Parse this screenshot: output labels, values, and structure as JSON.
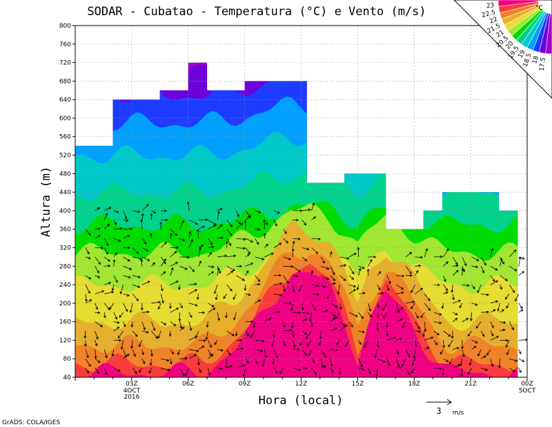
{
  "chart_data": {
    "type": "heatmap",
    "title": "SODAR - Cubatao - Temperatura (°C) e Vento (m/s)",
    "xlabel": "Hora (local)",
    "ylabel": "Altura (m)",
    "ylim": [
      40,
      800
    ],
    "y_ticks": [
      "40",
      "80",
      "120",
      "160",
      "200",
      "240",
      "280",
      "320",
      "360",
      "400",
      "440",
      "480",
      "520",
      "560",
      "600",
      "640",
      "680",
      "720",
      "760",
      "800"
    ],
    "x_ticks": [
      {
        "hour": 3,
        "label": "03Z",
        "sub": [
          "4OCT",
          "2016"
        ]
      },
      {
        "hour": 6,
        "label": "06Z",
        "sub": []
      },
      {
        "hour": 9,
        "label": "09Z",
        "sub": []
      },
      {
        "hour": 12,
        "label": "12Z",
        "sub": []
      },
      {
        "hour": 15,
        "label": "15Z",
        "sub": []
      },
      {
        "hour": 18,
        "label": "18Z",
        "sub": []
      },
      {
        "hour": 21,
        "label": "21Z",
        "sub": []
      },
      {
        "hour": 24,
        "label": "00Z",
        "sub": [
          "5OCT"
        ]
      }
    ],
    "grid": true,
    "legend": {
      "placement": "top-right",
      "unit": "°C",
      "levels": [
        "17.5",
        "18",
        "18.5",
        "19",
        "19.5",
        "20",
        "20.5",
        "21",
        "21.5",
        "22",
        "22.5",
        "23"
      ],
      "colors": [
        "#a000c8",
        "#6e00dc",
        "#1e3cff",
        "#00a0ff",
        "#00c8c8",
        "#00d28c",
        "#00dc00",
        "#a0e632",
        "#e6dc32",
        "#e6af2d",
        "#f08228",
        "#fa3c3c",
        "#f00082"
      ]
    },
    "data_top": [
      {
        "hour": 0,
        "top": 540
      },
      {
        "hour": 2,
        "top": 540
      },
      {
        "hour": 2,
        "top": 640
      },
      {
        "hour": 4.5,
        "top": 640
      },
      {
        "hour": 4.5,
        "top": 660
      },
      {
        "hour": 6,
        "top": 660
      },
      {
        "hour": 6,
        "top": 720
      },
      {
        "hour": 7,
        "top": 720
      },
      {
        "hour": 7,
        "top": 660
      },
      {
        "hour": 9,
        "top": 660
      },
      {
        "hour": 9,
        "top": 680
      },
      {
        "hour": 12.3,
        "top": 680
      },
      {
        "hour": 12.3,
        "top": 460
      },
      {
        "hour": 14.3,
        "top": 460
      },
      {
        "hour": 14.3,
        "top": 480
      },
      {
        "hour": 16.5,
        "top": 480
      },
      {
        "hour": 16.5,
        "top": 360
      },
      {
        "hour": 18.5,
        "top": 360
      },
      {
        "hour": 18.5,
        "top": 400
      },
      {
        "hour": 19.5,
        "top": 400
      },
      {
        "hour": 19.5,
        "top": 440
      },
      {
        "hour": 22.5,
        "top": 440
      },
      {
        "hour": 22.5,
        "top": 400
      },
      {
        "hour": 23.5,
        "top": 400
      },
      {
        "hour": 23.5,
        "top": 40
      }
    ],
    "warm_core": [
      {
        "hour": 8.5,
        "t": 0.25
      },
      {
        "hour": 9.5,
        "t": 0.45
      },
      {
        "hour": 10.5,
        "t": 0.75
      },
      {
        "hour": 11.5,
        "t": 1.0
      },
      {
        "hour": 12.5,
        "t": 1.0
      },
      {
        "hour": 13.5,
        "t": 0.85
      },
      {
        "hour": 14.3,
        "t": 0.55
      },
      {
        "hour": 15.0,
        "t": 0.15
      },
      {
        "hour": 15.6,
        "t": 0.5
      },
      {
        "hour": 16.5,
        "t": 0.8
      },
      {
        "hour": 17.5,
        "t": 0.6
      },
      {
        "hour": 18.5,
        "t": 0.3
      },
      {
        "hour": 19.5,
        "t": 0.05
      }
    ],
    "wind_reference": {
      "speed": 3,
      "unit": "m/s",
      "label": "3",
      "unit_label": "m/s"
    },
    "footer": "GrADS: COLA/IGES"
  }
}
